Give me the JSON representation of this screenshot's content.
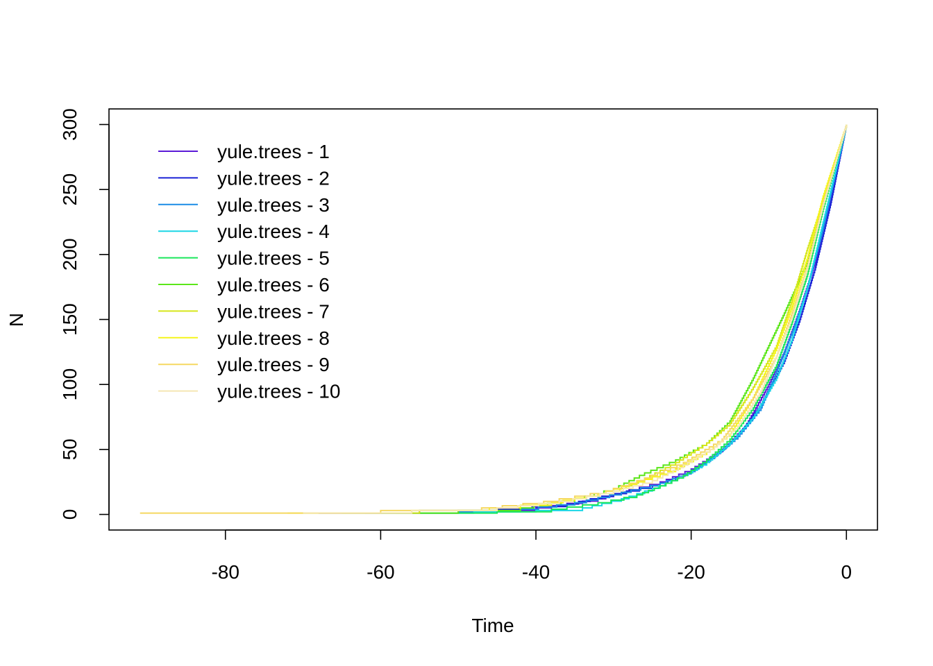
{
  "chart_data": {
    "type": "line",
    "title": "",
    "xlabel": "Time",
    "ylabel": "N",
    "xlim": [
      -95,
      4
    ],
    "ylim": [
      -12,
      312
    ],
    "xticks": [
      -80,
      -60,
      -40,
      -20,
      0
    ],
    "yticks": [
      0,
      50,
      100,
      150,
      200,
      250,
      300
    ],
    "xtick_labels": [
      "-80",
      "-60",
      "-40",
      "-20",
      "0"
    ],
    "ytick_labels": [
      "0",
      "50",
      "100",
      "150",
      "200",
      "250",
      "300"
    ],
    "legend_position": "top-left",
    "grid": false,
    "series": [
      {
        "name": "yule.trees - 1",
        "color": "#5b1ad6",
        "x": [
          -68,
          -50,
          -40,
          -32,
          -28,
          -24,
          -20,
          -16,
          -13,
          -10,
          -8,
          -6,
          -4,
          -2,
          0
        ],
        "y": [
          1,
          3,
          5,
          12,
          19,
          25,
          35,
          50,
          68,
          100,
          125,
          158,
          195,
          245,
          300
        ]
      },
      {
        "name": "yule.trees - 2",
        "color": "#1a22d6",
        "x": [
          -68,
          -55,
          -45,
          -36,
          -30,
          -25,
          -21,
          -17,
          -14,
          -11,
          -8,
          -6,
          -4,
          -2,
          0
        ],
        "y": [
          1,
          3,
          4,
          8,
          16,
          22,
          30,
          45,
          60,
          85,
          118,
          150,
          190,
          240,
          300
        ]
      },
      {
        "name": "yule.trees - 3",
        "color": "#1a8ce6",
        "x": [
          -62,
          -50,
          -42,
          -35,
          -29,
          -24,
          -20,
          -17,
          -14,
          -11,
          -9,
          -7,
          -5,
          -3,
          0
        ],
        "y": [
          1,
          2,
          4,
          9,
          17,
          24,
          33,
          45,
          60,
          82,
          110,
          140,
          175,
          220,
          300
        ]
      },
      {
        "name": "yule.trees - 4",
        "color": "#1ad6e6",
        "x": [
          -60,
          -48,
          -40,
          -34,
          -29,
          -25,
          -21,
          -18,
          -15,
          -12,
          -9,
          -7,
          -5,
          -3,
          0
        ],
        "y": [
          1,
          2,
          3,
          5,
          12,
          20,
          30,
          40,
          55,
          75,
          105,
          135,
          175,
          225,
          300
        ]
      },
      {
        "name": "yule.trees - 5",
        "color": "#1ae65b",
        "x": [
          -58,
          -45,
          -38,
          -32,
          -27,
          -24,
          -21,
          -18,
          -15,
          -12,
          -9,
          -7,
          -5,
          -3,
          0
        ],
        "y": [
          1,
          2,
          4,
          9,
          15,
          22,
          30,
          42,
          58,
          82,
          115,
          148,
          185,
          235,
          300
        ]
      },
      {
        "name": "yule.trees - 6",
        "color": "#5be61a",
        "x": [
          -65,
          -50,
          -42,
          -35,
          -30,
          -26,
          -22,
          -18,
          -15,
          -12,
          -10,
          -8,
          -5,
          -3,
          0
        ],
        "y": [
          1,
          3,
          5,
          12,
          20,
          32,
          42,
          55,
          72,
          105,
          130,
          155,
          195,
          240,
          300
        ]
      },
      {
        "name": "yule.trees - 7",
        "color": "#d6e61a",
        "x": [
          -70,
          -55,
          -45,
          -37,
          -30,
          -26,
          -22,
          -18,
          -15,
          -12,
          -9,
          -7,
          -5,
          -2,
          0
        ],
        "y": [
          1,
          3,
          5,
          10,
          18,
          28,
          40,
          55,
          70,
          98,
          130,
          165,
          205,
          260,
          300
        ]
      },
      {
        "name": "yule.trees - 8",
        "color": "#f5f51a",
        "x": [
          -72,
          -56,
          -46,
          -38,
          -32,
          -27,
          -22,
          -18,
          -15,
          -12,
          -9,
          -7,
          -5,
          -3,
          0
        ],
        "y": [
          1,
          3,
          5,
          9,
          16,
          25,
          35,
          48,
          62,
          90,
          128,
          160,
          198,
          245,
          300
        ]
      },
      {
        "name": "yule.trees - 9",
        "color": "#f5d860",
        "x": [
          -91,
          -75,
          -60,
          -47,
          -39,
          -31,
          -26,
          -21,
          -16,
          -12,
          -9,
          -7,
          -5,
          -3,
          0
        ],
        "y": [
          1,
          1,
          3,
          5,
          10,
          18,
          28,
          40,
          58,
          90,
          122,
          155,
          192,
          240,
          300
        ]
      },
      {
        "name": "yule.trees - 10",
        "color": "#f5e6b3",
        "x": [
          -70,
          -56,
          -45,
          -37,
          -30,
          -25,
          -21,
          -17,
          -14,
          -11,
          -9,
          -7,
          -5,
          -3,
          0
        ],
        "y": [
          1,
          3,
          5,
          10,
          18,
          26,
          38,
          52,
          68,
          95,
          122,
          152,
          190,
          238,
          300
        ]
      }
    ]
  }
}
